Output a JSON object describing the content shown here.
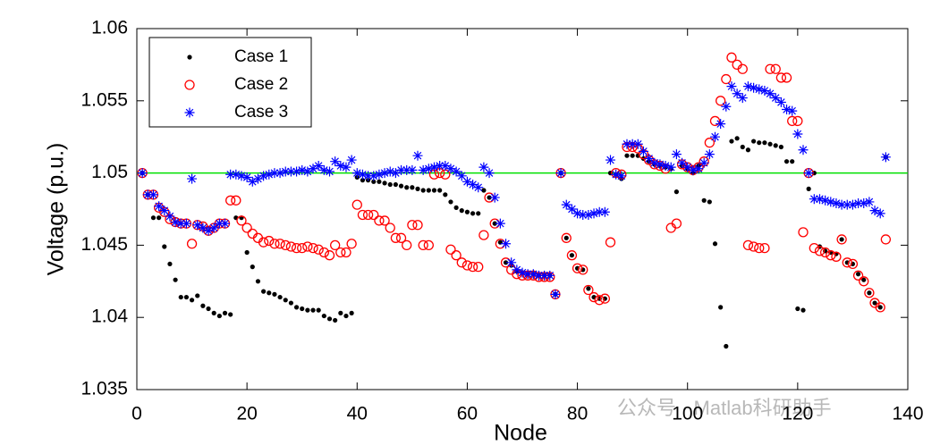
{
  "chart_data": {
    "type": "scatter",
    "xlabel": "Node",
    "ylabel": "Voltage (p.u.)",
    "xlim": [
      0,
      140
    ],
    "xticks": [
      0,
      20,
      40,
      60,
      80,
      100,
      120,
      140
    ],
    "ylim": [
      1.035,
      1.06
    ],
    "yticks": [
      1.035,
      1.04,
      1.045,
      1.05,
      1.055,
      1.06
    ],
    "legend": "upper left",
    "reference_line": {
      "value": 1.05,
      "color": "#00e000"
    },
    "x": [
      1,
      2,
      3,
      4,
      5,
      6,
      7,
      8,
      9,
      10,
      11,
      12,
      13,
      14,
      15,
      16,
      17,
      18,
      19,
      20,
      21,
      22,
      23,
      24,
      25,
      26,
      27,
      28,
      29,
      30,
      31,
      32,
      33,
      34,
      35,
      36,
      37,
      38,
      39,
      40,
      41,
      42,
      43,
      44,
      45,
      46,
      47,
      48,
      49,
      50,
      51,
      52,
      53,
      54,
      55,
      56,
      57,
      58,
      59,
      60,
      61,
      62,
      63,
      64,
      65,
      66,
      67,
      68,
      69,
      70,
      71,
      72,
      73,
      74,
      75,
      76,
      77,
      78,
      79,
      80,
      81,
      82,
      83,
      84,
      85,
      86,
      87,
      88,
      89,
      90,
      91,
      92,
      93,
      94,
      95,
      96,
      97,
      98,
      99,
      100,
      101,
      102,
      103,
      104,
      105,
      106,
      107,
      108,
      109,
      110,
      111,
      112,
      113,
      114,
      115,
      116,
      117,
      118,
      119,
      120,
      121,
      122,
      123,
      124,
      125,
      126,
      127,
      128,
      129,
      130,
      131,
      132,
      133,
      134,
      135,
      136
    ],
    "series": [
      {
        "name": "Case 1",
        "color": "#000000",
        "marker": "dot",
        "values": [
          1.05,
          1.0485,
          1.0469,
          1.0469,
          1.0449,
          1.0437,
          1.0426,
          1.0414,
          1.0414,
          1.0412,
          1.0415,
          1.0408,
          1.0406,
          1.0403,
          1.0401,
          1.0403,
          1.0402,
          1.0469,
          1.0469,
          1.0445,
          1.0435,
          1.0425,
          1.0418,
          1.0417,
          1.0416,
          1.0414,
          1.0412,
          1.041,
          1.0407,
          1.0406,
          1.0405,
          1.0405,
          1.0405,
          1.0401,
          1.0399,
          1.0398,
          1.0403,
          1.0401,
          1.0403,
          1.0497,
          1.0495,
          1.0495,
          1.0494,
          1.0494,
          1.0493,
          1.0492,
          1.0492,
          1.0491,
          1.049,
          1.049,
          1.0489,
          1.0488,
          1.0488,
          1.0488,
          1.0488,
          1.0485,
          1.048,
          1.0476,
          1.0474,
          1.0473,
          1.0472,
          1.0472,
          1.0488,
          1.0483,
          1.0465,
          1.0452,
          1.0438,
          1.0436,
          1.0432,
          1.0431,
          1.043,
          1.043,
          1.0429,
          1.0429,
          1.0429,
          1.0416,
          1.05,
          1.0455,
          1.0443,
          1.0434,
          1.0433,
          1.042,
          1.0414,
          1.0413,
          1.0413,
          1.05,
          1.0499,
          1.0496,
          1.0512,
          1.0512,
          1.0512,
          1.051,
          1.0508,
          1.0506,
          1.0505,
          1.0504,
          1.0503,
          1.0487,
          1.0505,
          1.0503,
          1.05,
          1.0505,
          1.0481,
          1.048,
          1.0451,
          1.0407,
          1.038,
          1.0522,
          1.0524,
          1.0518,
          1.0516,
          1.0522,
          1.0521,
          1.0521,
          1.052,
          1.0519,
          1.0518,
          1.0508,
          1.0508,
          1.0406,
          1.0405,
          1.0489,
          1.05,
          1.0449,
          1.0446,
          1.0445,
          1.0444,
          1.0454,
          1.0438,
          1.0437,
          1.043,
          1.0426,
          1.0417,
          1.041,
          1.0407,
          1.0511
        ]
      },
      {
        "name": "Case 2",
        "color": "#ff0000",
        "marker": "circle",
        "values": [
          1.05,
          1.0485,
          1.0485,
          1.0476,
          1.0473,
          1.0468,
          1.0466,
          1.0465,
          1.0465,
          1.0451,
          1.0464,
          1.0463,
          1.046,
          1.0462,
          1.0465,
          1.0465,
          1.0481,
          1.0481,
          1.0467,
          1.0462,
          1.0458,
          1.0455,
          1.0452,
          1.0453,
          1.0451,
          1.0451,
          1.045,
          1.0449,
          1.0448,
          1.0448,
          1.0449,
          1.0448,
          1.0447,
          1.0445,
          1.0443,
          1.045,
          1.0445,
          1.0445,
          1.0451,
          1.0478,
          1.0471,
          1.0471,
          1.0471,
          1.0467,
          1.0467,
          1.0462,
          1.0455,
          1.0455,
          1.045,
          1.0464,
          1.0464,
          1.045,
          1.045,
          1.0499,
          1.05,
          1.0499,
          1.0447,
          1.0443,
          1.0438,
          1.0436,
          1.0435,
          1.0435,
          1.0457,
          1.0483,
          1.0465,
          1.0451,
          1.0438,
          1.0433,
          1.043,
          1.0429,
          1.0429,
          1.0429,
          1.0428,
          1.0428,
          1.0428,
          1.0416,
          1.05,
          1.0455,
          1.0443,
          1.0434,
          1.0433,
          1.0419,
          1.0414,
          1.0412,
          1.0413,
          1.0452,
          1.05,
          1.0499,
          1.0518,
          1.0518,
          1.0517,
          1.0513,
          1.0509,
          1.0506,
          1.0505,
          1.0503,
          1.0462,
          1.0465,
          1.0506,
          1.0504,
          1.0502,
          1.0504,
          1.0508,
          1.0521,
          1.0536,
          1.055,
          1.0565,
          1.058,
          1.0575,
          1.0572,
          1.045,
          1.0449,
          1.0448,
          1.0448,
          1.0572,
          1.0572,
          1.0566,
          1.0566,
          1.0536,
          1.0536,
          1.0459,
          1.05,
          1.0448,
          1.0446,
          1.0445,
          1.0443,
          1.0442,
          1.0454,
          1.0438,
          1.0437,
          1.0429,
          1.0425,
          1.0417,
          1.041,
          1.0407,
          1.0454
        ]
      },
      {
        "name": "Case 3",
        "color": "#0000ff",
        "marker": "star",
        "values": [
          1.05,
          1.0485,
          1.0485,
          1.0477,
          1.0474,
          1.047,
          1.0466,
          1.0465,
          1.0465,
          1.0496,
          1.0464,
          1.0462,
          1.046,
          1.0462,
          1.0465,
          1.0465,
          1.0499,
          1.0499,
          1.0498,
          1.0497,
          1.0494,
          1.0496,
          1.0498,
          1.0499,
          1.05,
          1.05,
          1.0501,
          1.0501,
          1.0501,
          1.0502,
          1.0501,
          1.0503,
          1.0505,
          1.0502,
          1.0501,
          1.0508,
          1.0505,
          1.0504,
          1.0509,
          1.05,
          1.0499,
          1.0498,
          1.0498,
          1.0499,
          1.05,
          1.0501,
          1.05,
          1.0502,
          1.0502,
          1.0502,
          1.0512,
          1.0502,
          1.0503,
          1.0504,
          1.0505,
          1.0505,
          1.0503,
          1.0501,
          1.0498,
          1.0494,
          1.0492,
          1.049,
          1.0504,
          1.05,
          1.0483,
          1.0465,
          1.0451,
          1.0438,
          1.0433,
          1.0431,
          1.043,
          1.043,
          1.0429,
          1.0429,
          1.0429,
          1.0416,
          1.05,
          1.0478,
          1.0475,
          1.0472,
          1.0471,
          1.0471,
          1.0472,
          1.0473,
          1.0473,
          1.0509,
          1.0499,
          1.0498,
          1.052,
          1.052,
          1.052,
          1.0515,
          1.051,
          1.0507,
          1.0506,
          1.0505,
          1.0504,
          1.0513,
          1.0507,
          1.0504,
          1.0502,
          1.0503,
          1.0507,
          1.0513,
          1.0525,
          1.0534,
          1.0546,
          1.056,
          1.0555,
          1.0552,
          1.056,
          1.0559,
          1.0558,
          1.0557,
          1.0555,
          1.0552,
          1.0549,
          1.0544,
          1.0543,
          1.0527,
          1.0516,
          1.05,
          1.0482,
          1.0482,
          1.0481,
          1.048,
          1.0479,
          1.0478,
          1.0478,
          1.0478,
          1.0479,
          1.0479,
          1.048,
          1.0474,
          1.0472,
          1.0511
        ]
      }
    ]
  },
  "watermark": "公众号 · Matlab科研助手"
}
